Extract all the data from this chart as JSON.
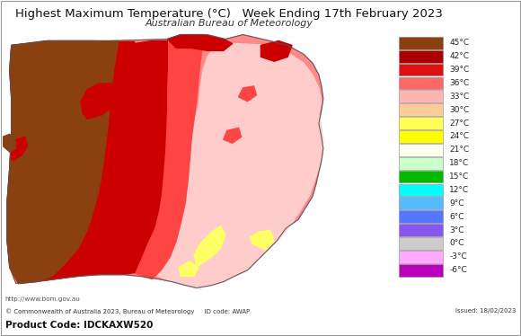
{
  "title": "Highest Maximum Temperature (°C)   Week Ending 17th February 2023",
  "subtitle": "Australian Bureau of Meteorology",
  "footer_left": "© Commonwealth of Australia 2023, Bureau of Meteorology     ID code: AWAP",
  "footer_right": "Issued: 18/02/2023",
  "footer_url": "http://www.bom.gov.au",
  "product_code": "Product Code: IDCKAXW520",
  "legend_labels": [
    "45°C",
    "42°C",
    "39°C",
    "36°C",
    "33°C",
    "30°C",
    "27°C",
    "24°C",
    "21°C",
    "18°C",
    "15°C",
    "12°C",
    "9°C",
    "6°C",
    "3°C",
    "0°C",
    "-3°C",
    "-6°C"
  ],
  "legend_colors": [
    "#8B4010",
    "#AA0000",
    "#DD1111",
    "#FF6666",
    "#FFB3B3",
    "#FFCC99",
    "#FFFF55",
    "#FFFF00",
    "#FFFFEE",
    "#CCFFCC",
    "#00BB00",
    "#00FFFF",
    "#55BBFF",
    "#5577FF",
    "#8855EE",
    "#CCCCCC",
    "#FFAAFF",
    "#BB00BB"
  ],
  "bg_color": "#FFFFFF",
  "border_color": "#AAAAAA",
  "title_fontsize": 9.5,
  "subtitle_fontsize": 8,
  "legend_fontsize": 6.5
}
